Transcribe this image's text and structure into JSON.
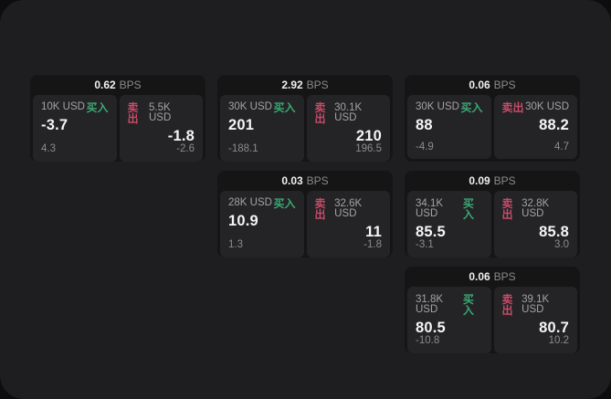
{
  "labels": {
    "unit": "BPS",
    "buy": "买入",
    "sell": "卖出"
  },
  "colors": {
    "page_background": "#1e1e20",
    "card_background": "#151516",
    "panel_background": "#242427",
    "buy_accent": "#3aa873",
    "sell_accent": "#c94b68"
  },
  "cards": [
    {
      "bps": "0.62",
      "buy": {
        "amount": "10K USD",
        "value": "-3.7",
        "sub": "4.3"
      },
      "sell": {
        "amount": "5.5K USD",
        "value": "-1.8",
        "sub": "-2.6"
      }
    },
    {
      "bps": "2.92",
      "buy": {
        "amount": "30K USD",
        "value": "201",
        "sub": "-188.1"
      },
      "sell": {
        "amount": "30.1K USD",
        "value": "210",
        "sub": "196.5"
      }
    },
    {
      "bps": "0.06",
      "buy": {
        "amount": "30K USD",
        "value": "88",
        "sub": "-4.9"
      },
      "sell": {
        "amount": "30K USD",
        "value": "88.2",
        "sub": "4.7"
      }
    },
    {
      "bps": "0.03",
      "buy": {
        "amount": "28K USD",
        "value": "10.9",
        "sub": "1.3"
      },
      "sell": {
        "amount": "32.6K USD",
        "value": "11",
        "sub": "-1.8"
      }
    },
    {
      "bps": "0.09",
      "buy": {
        "amount": "34.1K USD",
        "value": "85.5",
        "sub": "-3.1"
      },
      "sell": {
        "amount": "32.8K USD",
        "value": "85.8",
        "sub": "3.0"
      }
    },
    {
      "bps": "0.06",
      "buy": {
        "amount": "31.8K USD",
        "value": "80.5",
        "sub": "-10.8"
      },
      "sell": {
        "amount": "39.1K USD",
        "value": "80.7",
        "sub": "10.2"
      }
    }
  ]
}
